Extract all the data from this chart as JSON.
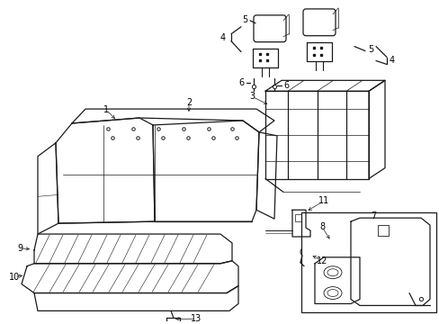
{
  "bg_color": "#ffffff",
  "line_color": "#1a1a1a",
  "fig_width": 4.89,
  "fig_height": 3.6,
  "dpi": 100,
  "label_fs": 7.0
}
